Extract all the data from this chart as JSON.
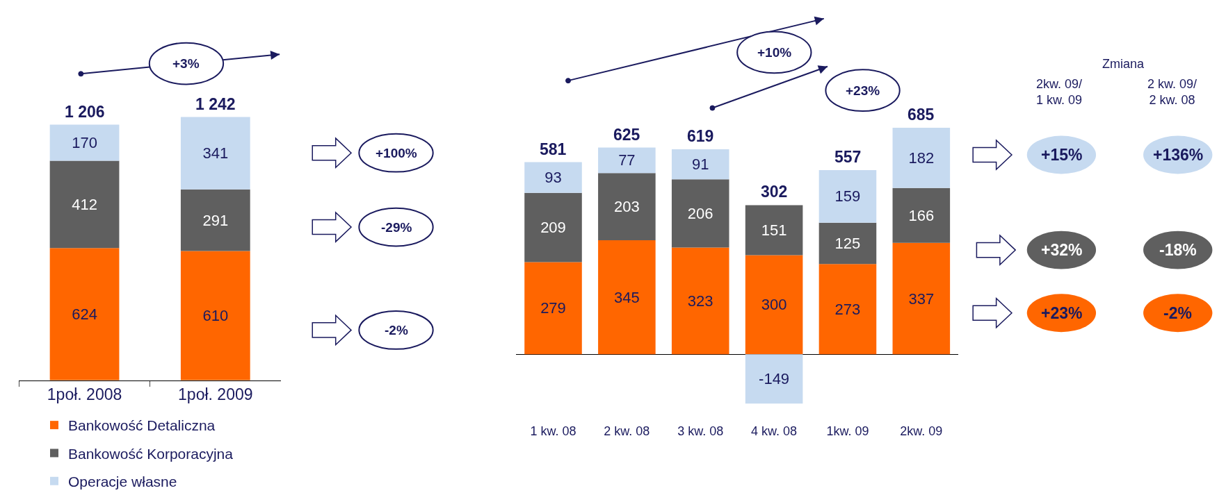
{
  "chart_data": [
    {
      "type": "bar",
      "stacked": true,
      "data_labels": true,
      "legend": "bottom",
      "categories": [
        "1poł. 2008",
        "1poł. 2009"
      ],
      "series": [
        {
          "name": "Bankowość Detaliczna",
          "color": "#ff6600",
          "values": [
            624,
            610
          ]
        },
        {
          "name": "Bankowość Korporacyjna",
          "color": "#5f5f5f",
          "values": [
            412,
            291
          ]
        },
        {
          "name": "Operacje własne",
          "color": "#c6daf0",
          "values": [
            170,
            341
          ]
        }
      ],
      "totals": [
        "1 206",
        "1 242"
      ],
      "annotations": [
        "+3%",
        "+100%",
        "-29%",
        "-2%"
      ]
    },
    {
      "type": "bar",
      "stacked": true,
      "data_labels": true,
      "legend": "bottom",
      "categories": [
        "1 kw. 08",
        "2 kw. 08",
        "3 kw. 08",
        "4 kw. 08",
        "1kw. 09",
        "2kw. 09"
      ],
      "series": [
        {
          "name": "Bankowość Detaliczna",
          "color": "#ff6600",
          "values": [
            279,
            345,
            323,
            300,
            273,
            337
          ]
        },
        {
          "name": "Bankowość Korporacyjna",
          "color": "#5f5f5f",
          "values": [
            209,
            203,
            206,
            151,
            125,
            166
          ]
        },
        {
          "name": "Operacje własne",
          "color": "#c6daf0",
          "values": [
            93,
            77,
            91,
            -149,
            159,
            182
          ]
        }
      ],
      "totals": [
        "581",
        "625",
        "619",
        "302",
        "557",
        "685"
      ],
      "annotations": [
        "+10%",
        "+23%",
        "Zmiana",
        "2kw. 09/\n1 kw. 09",
        "2 kw. 09/\n2 kw. 08",
        "+15%",
        "+136%",
        "+32%",
        "-18%",
        "+23%",
        "-2%"
      ]
    }
  ]
}
